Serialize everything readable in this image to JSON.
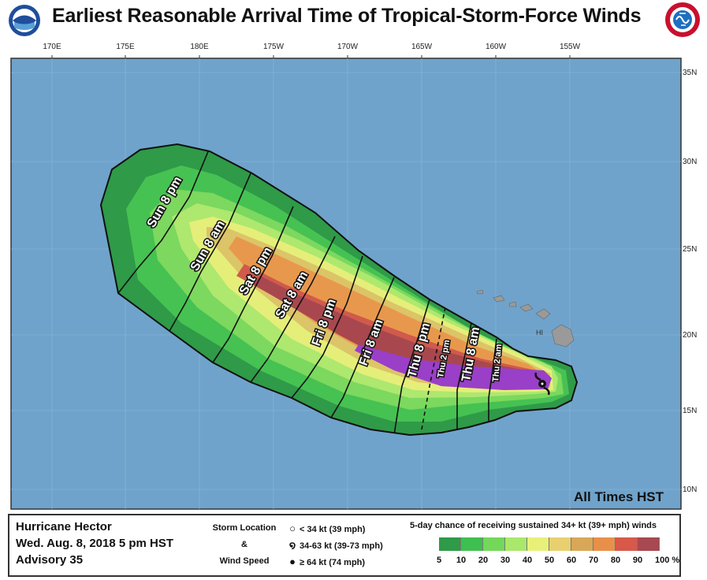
{
  "title": "Earliest Reasonable Arrival Time of Tropical-Storm-Force Winds",
  "logos": {
    "left": "NOAA",
    "right": "NATIONAL WEATHER SERVICE"
  },
  "map": {
    "lon_labels": [
      "170E",
      "175E",
      "180E",
      "175W",
      "170W",
      "165W",
      "160W",
      "155W"
    ],
    "lat_labels": [
      "35N",
      "30N",
      "25N",
      "20N",
      "15N",
      "10N"
    ],
    "time_labels": [
      "Sun 8 pm",
      "Sun 8 am",
      "Sat 8 pm",
      "Sat 8 am",
      "Fri 8 pm",
      "Fri 8 am",
      "Thu 8 pm",
      "Thu 2 pm",
      "Thu 8 am",
      "Thu 2 am"
    ],
    "island_label": "HI",
    "footer_note": "All Times HST",
    "colors": {
      "ocean": "#6fa3cb",
      "land": "#9a9a9a",
      "dark_green": "#2f9a48",
      "green": "#5fcf5f",
      "light_green": "#a9e86a",
      "yellow": "#f0f07a",
      "tan": "#d8c060",
      "orange": "#e89040",
      "red": "#c84848",
      "dark_red": "#a0404a",
      "purple": "#9a3fc8"
    }
  },
  "legend": {
    "storm_name": "Hurricane Hector",
    "date": "Wed. Aug. 8, 2018   5 pm HST",
    "advisory": "Advisory 35",
    "storm_location_label": "Storm Location",
    "amp": "&",
    "wind_speed_label": "Wind Speed",
    "items": [
      "< 34 kt (39 mph)",
      "34-63 kt (39-73 mph)",
      "≥ 64 kt (74 mph)"
    ],
    "prob_title": "5-day chance of receiving sustained 34+ kt (39+ mph) winds",
    "prob_labels": [
      "5",
      "10",
      "20",
      "30",
      "40",
      "50",
      "60",
      "70",
      "80",
      "90",
      "100 %"
    ],
    "prob_colors": [
      "#2f9a48",
      "#3fbf4f",
      "#73d85a",
      "#a9e86a",
      "#e8f07a",
      "#e8d070",
      "#d8a858",
      "#e8904a",
      "#d8584a",
      "#a84850",
      "#9a3fc8"
    ]
  }
}
